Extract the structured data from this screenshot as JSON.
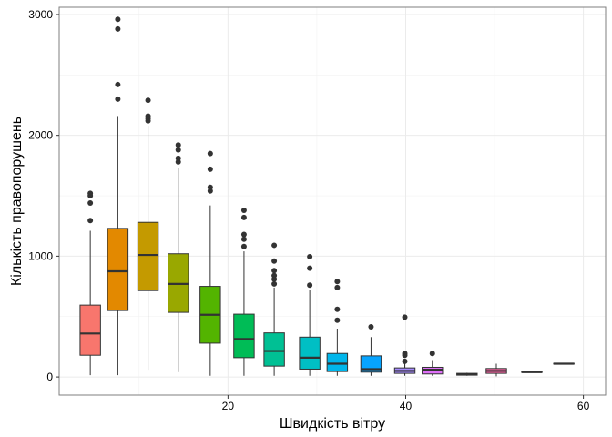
{
  "chart_data": {
    "type": "boxplot",
    "xlabel": "Швидкість вітру",
    "ylabel": "Кількість правопорушень",
    "xlim": [
      1.0,
      62.5
    ],
    "ylim": [
      -150,
      3060
    ],
    "x_ticks": [
      20,
      40,
      60
    ],
    "y_ticks": [
      0,
      1000,
      2000,
      3000
    ],
    "grid": true,
    "legend": "none",
    "box_width": 2.3,
    "boxes": [
      {
        "x": 4.5,
        "whisker_low": 15,
        "q1": 180,
        "median": 360,
        "q3": 595,
        "whisker_high": 1210,
        "outliers": [
          1295,
          1440,
          1500,
          1520
        ],
        "color": "#F8766D"
      },
      {
        "x": 7.6,
        "whisker_low": 15,
        "q1": 550,
        "median": 875,
        "q3": 1230,
        "whisker_high": 2160,
        "outliers": [
          2300,
          2420,
          2880,
          2960
        ],
        "color": "#E38900"
      },
      {
        "x": 11.0,
        "whisker_low": 60,
        "q1": 715,
        "median": 1010,
        "q3": 1280,
        "whisker_high": 2080,
        "outliers": [
          2120,
          2140,
          2160,
          2290
        ],
        "color": "#C49A00"
      },
      {
        "x": 14.4,
        "whisker_low": 40,
        "q1": 535,
        "median": 770,
        "q3": 1020,
        "whisker_high": 1730,
        "outliers": [
          1780,
          1810,
          1880,
          1920
        ],
        "color": "#99A800"
      },
      {
        "x": 18.0,
        "whisker_low": 10,
        "q1": 280,
        "median": 515,
        "q3": 750,
        "whisker_high": 1420,
        "outliers": [
          1540,
          1570,
          1720,
          1850
        ],
        "color": "#53B400"
      },
      {
        "x": 21.8,
        "whisker_low": 10,
        "q1": 160,
        "median": 315,
        "q3": 520,
        "whisker_high": 1040,
        "outliers": [
          1080,
          1140,
          1180,
          1320,
          1380
        ],
        "color": "#00BC56"
      },
      {
        "x": 25.2,
        "whisker_low": 10,
        "q1": 90,
        "median": 215,
        "q3": 365,
        "whisker_high": 740,
        "outliers": [
          770,
          810,
          840,
          880,
          960,
          1090
        ],
        "color": "#00C094"
      },
      {
        "x": 29.2,
        "whisker_low": 10,
        "q1": 65,
        "median": 160,
        "q3": 330,
        "whisker_high": 720,
        "outliers": [
          760,
          900,
          995
        ],
        "color": "#00BFC4"
      },
      {
        "x": 32.3,
        "whisker_low": 10,
        "q1": 45,
        "median": 110,
        "q3": 195,
        "whisker_high": 400,
        "outliers": [
          470,
          560,
          740,
          790
        ],
        "color": "#00B6EB"
      },
      {
        "x": 36.1,
        "whisker_low": 10,
        "q1": 40,
        "median": 65,
        "q3": 175,
        "whisker_high": 330,
        "outliers": [
          415
        ],
        "color": "#06A4FF"
      },
      {
        "x": 39.9,
        "whisker_low": 10,
        "q1": 30,
        "median": 50,
        "q3": 75,
        "whisker_high": 110,
        "outliers": [
          130,
          180,
          195,
          495
        ],
        "color": "#A58AFF"
      },
      {
        "x": 43.0,
        "whisker_low": 10,
        "q1": 25,
        "median": 60,
        "q3": 80,
        "whisker_high": 140,
        "outliers": [
          195
        ],
        "color": "#DF70F8"
      },
      {
        "x": 46.9,
        "whisker_low": 10,
        "q1": 15,
        "median": 20,
        "q3": 30,
        "whisker_high": 35,
        "outliers": [],
        "color": "#FB61D7"
      },
      {
        "x": 50.2,
        "whisker_low": 5,
        "q1": 30,
        "median": 50,
        "q3": 70,
        "whisker_high": 110,
        "outliers": [],
        "color": "#FF66A8"
      },
      {
        "x": 54.2,
        "whisker_low": 35,
        "q1": 38,
        "median": 40,
        "q3": 43,
        "whisker_high": 45,
        "outliers": [],
        "color": "#FF6C91"
      },
      {
        "x": 57.8,
        "whisker_low": 105,
        "q1": 107,
        "median": 110,
        "q3": 113,
        "whisker_high": 115,
        "outliers": [],
        "color": "#FF6C91"
      }
    ]
  }
}
